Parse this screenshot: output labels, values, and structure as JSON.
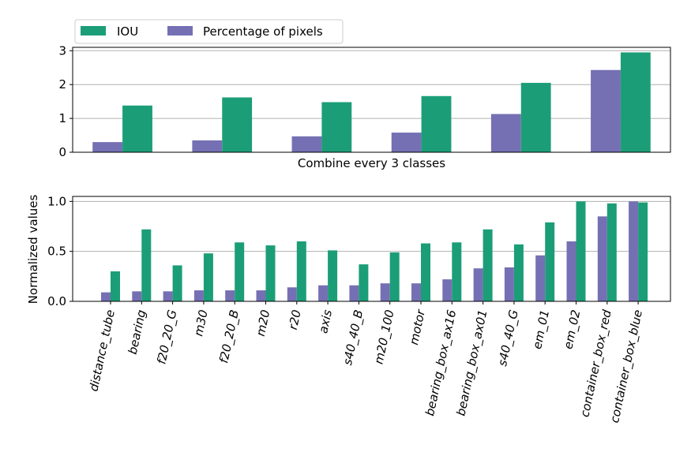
{
  "colors": {
    "iou": "#1b9e77",
    "pixels": "#7570b3",
    "grid": "#b0b0b0"
  },
  "legend": {
    "items": [
      {
        "name": "IOU",
        "color": "#1b9e77"
      },
      {
        "name": "Percentage of pixels",
        "color": "#7570b3"
      }
    ],
    "placement": "top-left, above plots"
  },
  "chart_data": [
    {
      "type": "bar",
      "xlabel": "Combine every 3 classes",
      "ylabel": "",
      "ylim": [
        0,
        3.1
      ],
      "yticks": [
        0,
        1,
        2,
        3
      ],
      "grid": "y",
      "categories": [
        "",
        "",
        "",
        "",
        "",
        ""
      ],
      "series": [
        {
          "name": "Percentage of pixels",
          "color": "#7570b3",
          "values": [
            0.3,
            0.35,
            0.47,
            0.58,
            1.13,
            2.43
          ]
        },
        {
          "name": "IOU",
          "color": "#1b9e77",
          "values": [
            1.38,
            1.62,
            1.48,
            1.66,
            2.05,
            2.95
          ]
        }
      ]
    },
    {
      "type": "bar",
      "xlabel": "",
      "ylabel": "Normalized values",
      "ylim": [
        0,
        1.05
      ],
      "yticks": [
        0.0,
        0.5,
        1.0
      ],
      "yticklabels": [
        "0.0",
        "0.5",
        "1.0"
      ],
      "grid": "y",
      "categories": [
        "distance_tube",
        "bearing",
        "f20_20_G",
        "m30",
        "f20_20_B",
        "m20",
        "r20",
        "axis",
        "s40_40_B",
        "m20_100",
        "motor",
        "bearing_box_ax16",
        "bearing_box_ax01",
        "s40_40_G",
        "em_01",
        "em_02",
        "container_box_red",
        "container_box_blue"
      ],
      "series": [
        {
          "name": "Percentage of pixels",
          "color": "#7570b3",
          "values": [
            0.09,
            0.1,
            0.1,
            0.11,
            0.11,
            0.11,
            0.14,
            0.16,
            0.16,
            0.18,
            0.18,
            0.22,
            0.33,
            0.34,
            0.46,
            0.6,
            0.85,
            1.0
          ]
        },
        {
          "name": "IOU",
          "color": "#1b9e77",
          "values": [
            0.3,
            0.72,
            0.36,
            0.48,
            0.59,
            0.56,
            0.6,
            0.51,
            0.37,
            0.49,
            0.58,
            0.59,
            0.72,
            0.57,
            0.79,
            1.0,
            0.98,
            0.99
          ]
        }
      ]
    }
  ]
}
